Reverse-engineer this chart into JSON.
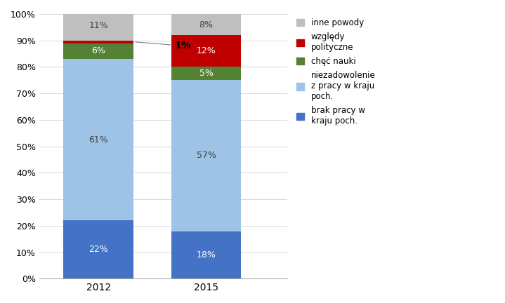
{
  "categories": [
    "2012",
    "2015"
  ],
  "series": [
    {
      "name": "brak pracy w\nkraju poch.",
      "values": [
        22,
        18
      ],
      "color": "#4472C4",
      "label_color": "white"
    },
    {
      "name": "niezadowolenie\nz pracy w kraju\npoch.",
      "values": [
        61,
        57
      ],
      "color": "#9DC3E6",
      "label_color": "#404040"
    },
    {
      "name": "chęć nauki",
      "values": [
        6,
        5
      ],
      "color": "#548235",
      "label_color": "white"
    },
    {
      "name": "względy\npolityczne",
      "values": [
        1,
        12
      ],
      "color": "#C00000",
      "label_color": "white"
    },
    {
      "name": "inne powody",
      "values": [
        11,
        8
      ],
      "color": "#BFBFBF",
      "label_color": "#404040"
    }
  ],
  "annotation_2012": "1%",
  "annotation_fontsize": 10,
  "ylim": [
    0,
    100
  ],
  "yticks": [
    0,
    10,
    20,
    30,
    40,
    50,
    60,
    70,
    80,
    90,
    100
  ],
  "ytick_labels": [
    "0%",
    "10%",
    "20%",
    "30%",
    "40%",
    "50%",
    "60%",
    "70%",
    "80%",
    "90%",
    "100%"
  ],
  "bar_width": 0.65,
  "figsize": [
    7.19,
    4.32
  ],
  "dpi": 100,
  "label_fontsize": 9,
  "tick_fontsize": 9,
  "xtick_fontsize": 10,
  "background_color": "#FFFFFF",
  "grid_color": "#D9D9D9"
}
